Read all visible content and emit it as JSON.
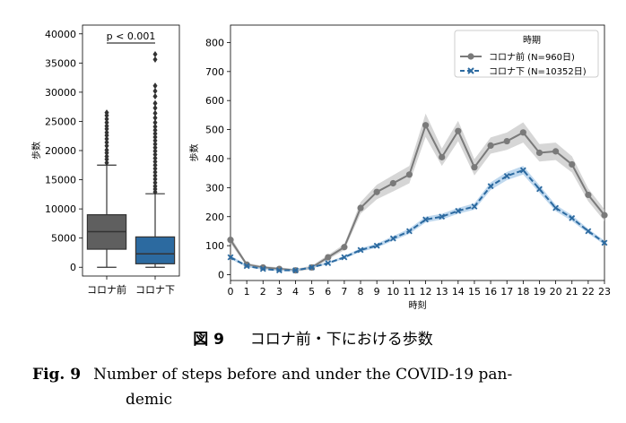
{
  "figure": {
    "left_panel": {
      "chart_data": {
        "type": "box",
        "ylabel": "歩数",
        "categories": [
          "コロナ前",
          "コロナ下"
        ],
        "ylim": [
          -1500,
          41500
        ],
        "yticks": [
          0,
          5000,
          10000,
          15000,
          20000,
          25000,
          30000,
          35000,
          40000
        ],
        "boxes": [
          {
            "name": "コロナ前",
            "color": "#5f5f5f",
            "whislo": 0,
            "q1": 3100,
            "med": 6100,
            "q3": 9000,
            "whishi": 17500,
            "fliers": [
              17900,
              18500,
              19000,
              19600,
              20100,
              20800,
              21400,
              22000,
              22600,
              23100,
              23700,
              24200,
              24800,
              25400,
              26000,
              26500
            ]
          },
          {
            "name": "コロナ下",
            "color": "#2c6aa0",
            "whislo": 0,
            "q1": 600,
            "med": 2300,
            "q3": 5200,
            "whishi": 12600,
            "fliers": [
              12900,
              13400,
              13900,
              14500,
              15100,
              15700,
              16300,
              16900,
              17500,
              18100,
              18700,
              19300,
              19900,
              20500,
              21100,
              21700,
              22300,
              22900,
              23500,
              24100,
              24800,
              25600,
              26400,
              27300,
              28100,
              29300,
              30200,
              31100,
              35600,
              36500
            ]
          }
        ],
        "annotation": "p < 0.001"
      }
    },
    "right_panel": {
      "chart_data": {
        "type": "line",
        "xlabel": "時刻",
        "ylabel": "歩数",
        "xlim": [
          0,
          23
        ],
        "ylim": [
          -20,
          860
        ],
        "x": [
          0,
          1,
          2,
          3,
          4,
          5,
          6,
          7,
          8,
          9,
          10,
          11,
          12,
          13,
          14,
          15,
          16,
          17,
          18,
          19,
          20,
          21,
          22,
          23
        ],
        "yticks": [
          0,
          100,
          200,
          300,
          400,
          500,
          600,
          700,
          800
        ],
        "legend_title": "時期",
        "legend_position": "top-right",
        "series": [
          {
            "name": "コロナ前 (N=960日)",
            "color": "#7a7a7a",
            "band": "#c8c8c8",
            "marker": "circle",
            "values": [
              120,
              35,
              25,
              20,
              15,
              25,
              60,
              95,
              230,
              285,
              315,
              345,
              515,
              405,
              495,
              370,
              445,
              460,
              490,
              420,
              425,
              380,
              275,
              205
            ],
            "ci": [
              12,
              6,
              5,
              5,
              5,
              6,
              8,
              10,
              20,
              25,
              28,
              30,
              40,
              30,
              35,
              28,
              28,
              30,
              35,
              30,
              30,
              28,
              22,
              20
            ]
          },
          {
            "name": "コロナ下 (N=10352日)",
            "color": "#2c6aa0",
            "band": "#a9cbe8",
            "marker": "x",
            "dashed": true,
            "values": [
              60,
              30,
              20,
              15,
              15,
              25,
              40,
              60,
              85,
              100,
              125,
              150,
              190,
              200,
              220,
              235,
              305,
              340,
              360,
              295,
              230,
              195,
              150,
              110
            ],
            "ci": [
              6,
              4,
              3,
              3,
              3,
              3,
              4,
              5,
              6,
              7,
              8,
              9,
              10,
              10,
              10,
              11,
              13,
              14,
              15,
              13,
              11,
              10,
              8,
              7
            ]
          }
        ]
      }
    }
  },
  "caption": {
    "ja_label": "図 9",
    "ja_text": "コロナ前・下における歩数",
    "en_label": "Fig. 9",
    "en_text": "Number of steps before and under the COVID-19 pan-",
    "en_text_cont": "demic"
  }
}
